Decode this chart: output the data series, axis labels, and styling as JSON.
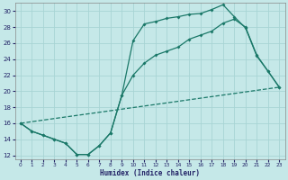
{
  "xlabel": "Humidex (Indice chaleur)",
  "bg_color": "#c5e8e8",
  "grid_color": "#a8d4d4",
  "line_color": "#1a7868",
  "xlim": [
    -0.5,
    23.5
  ],
  "ylim": [
    11.5,
    31.0
  ],
  "xtick_vals": [
    0,
    1,
    2,
    3,
    4,
    5,
    6,
    7,
    8,
    9,
    10,
    11,
    12,
    13,
    14,
    15,
    16,
    17,
    18,
    19,
    20,
    21,
    22,
    23
  ],
  "ytick_vals": [
    12,
    14,
    16,
    18,
    20,
    22,
    24,
    26,
    28,
    30
  ],
  "curve1_x": [
    0,
    1,
    2,
    3,
    4,
    5,
    6,
    7,
    8,
    9,
    10,
    11,
    12,
    13,
    14,
    15,
    16,
    17,
    18,
    19,
    20,
    21,
    22,
    23
  ],
  "curve1_y": [
    16.0,
    15.0,
    14.5,
    14.0,
    13.5,
    12.1,
    12.1,
    13.2,
    14.8,
    19.5,
    26.3,
    28.4,
    28.7,
    29.1,
    29.3,
    29.6,
    29.7,
    30.2,
    30.8,
    29.3,
    27.9,
    24.4,
    22.5,
    20.5
  ],
  "curve2_x": [
    0,
    1,
    2,
    3,
    4,
    5,
    6,
    7,
    8,
    9,
    10,
    11,
    12,
    13,
    14,
    15,
    16,
    17,
    18,
    19,
    20,
    21,
    22,
    23
  ],
  "curve2_y": [
    16.0,
    15.0,
    14.5,
    14.0,
    13.5,
    12.1,
    12.1,
    13.2,
    14.8,
    19.5,
    22.0,
    23.5,
    24.5,
    25.0,
    25.5,
    26.5,
    27.0,
    27.5,
    28.5,
    29.0,
    28.0,
    24.5,
    22.5,
    20.5
  ],
  "curve3_x": [
    0,
    23
  ],
  "curve3_y": [
    16.0,
    20.5
  ]
}
